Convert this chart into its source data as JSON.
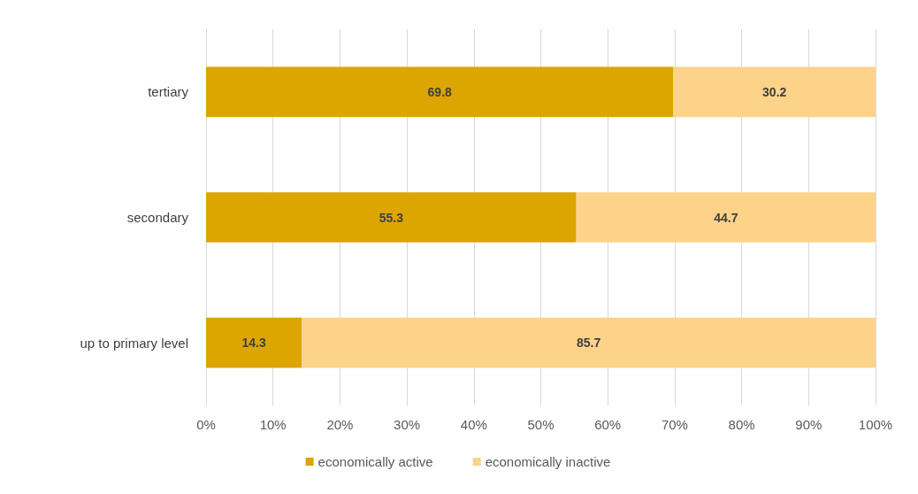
{
  "chart_data": {
    "type": "bar",
    "orientation": "horizontal",
    "stacked": true,
    "categories": [
      "tertiary",
      "secondary",
      "up to primary level"
    ],
    "series": [
      {
        "name": "economically active",
        "color": "#dca500",
        "values": [
          69.8,
          55.3,
          14.3
        ]
      },
      {
        "name": "economically inactive",
        "color": "#fdd38a",
        "values": [
          30.2,
          44.7,
          85.7
        ]
      }
    ],
    "xlim": [
      0,
      100
    ],
    "xticks": [
      {
        "value": 0,
        "label": "0%"
      },
      {
        "value": 10,
        "label": "10%"
      },
      {
        "value": 20,
        "label": "20%"
      },
      {
        "value": 30,
        "label": "30%"
      },
      {
        "value": 40,
        "label": "40%"
      },
      {
        "value": 50,
        "label": "50%"
      },
      {
        "value": 60,
        "label": "60%"
      },
      {
        "value": 70,
        "label": "70%"
      },
      {
        "value": 80,
        "label": "80%"
      },
      {
        "value": 90,
        "label": "90%"
      },
      {
        "value": 100,
        "label": "100%"
      }
    ],
    "grid": "x",
    "legend": "bottom",
    "data_labels": true
  }
}
